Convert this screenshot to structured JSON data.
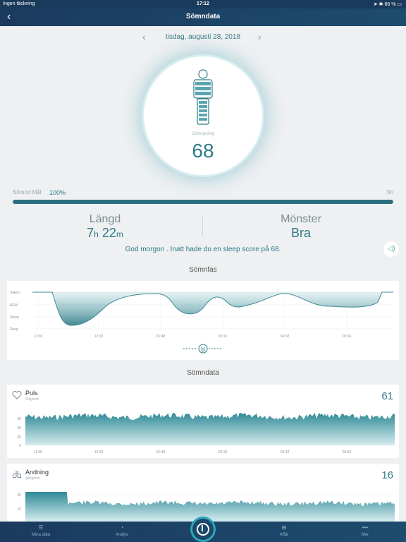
{
  "status": {
    "carrier": "Ingen täckning",
    "time": "17:12",
    "battery": "66 %"
  },
  "nav": {
    "title": "Sömndata",
    "back_icon": "chevron-left-icon"
  },
  "date": {
    "label": "tisdag, augusti 28, 2018",
    "prev_icon": "chevron-left-icon",
    "next_icon": "chevron-right-icon"
  },
  "score": {
    "label": "Sömnpoäng",
    "value": "68"
  },
  "goal": {
    "label": "Sömnd Mål",
    "percent_text": "100%",
    "percent": 100,
    "end_label": "5h"
  },
  "stats": {
    "length": {
      "name": "Längd",
      "hours": "7",
      "h_unit": "h",
      "minutes": "22",
      "m_unit": "m"
    },
    "pattern": {
      "name": "Mönster",
      "value": "Bra"
    }
  },
  "message": "God morgon . Inatt hade du en sleep score på 68.",
  "sleep_phase": {
    "title": "Sömnfas",
    "levels": [
      "Vaken",
      "REM",
      "Sleep",
      "Deep"
    ],
    "times": [
      "11:00",
      "12:20",
      "01:48",
      "03:10",
      "04:32",
      "05:56"
    ]
  },
  "sleep_data_title": "Sömndata",
  "pulse": {
    "title": "Puls",
    "subtitle": "Slag/min",
    "value": "61",
    "y_ticks": [
      "60",
      "40",
      "20",
      "0"
    ],
    "times": [
      "11:00",
      "12:20",
      "01:48",
      "03:10",
      "04:32",
      "05:56"
    ]
  },
  "breathing": {
    "title": "Andning",
    "subtitle": "gång/min",
    "value": "16",
    "y_ticks": [
      "20",
      "10"
    ]
  },
  "tabs": [
    {
      "label": "Mina data",
      "icon": "list-icon"
    },
    {
      "label": "Analys",
      "icon": "chart-icon"
    },
    {
      "label": "Affär",
      "icon": "cart-icon"
    },
    {
      "label": "Mer",
      "icon": "more-icon"
    }
  ],
  "colors": {
    "accent": "#2f7b86",
    "nav": "#1b3a5e",
    "chart": "#5aa6b0"
  }
}
